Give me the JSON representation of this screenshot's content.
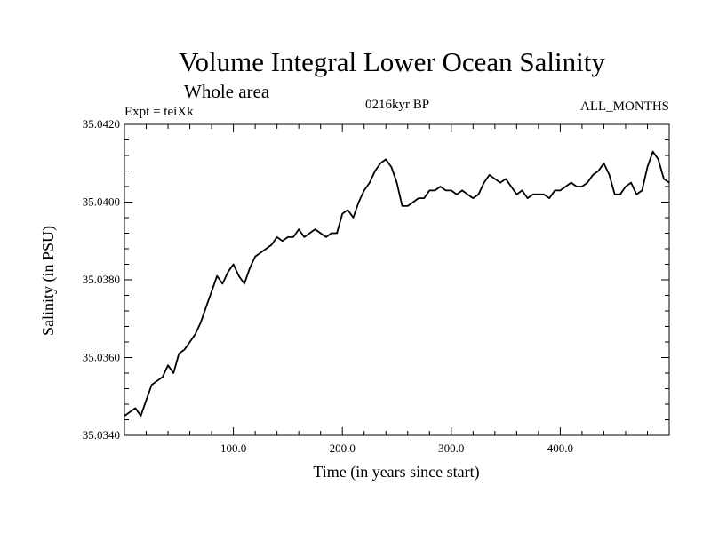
{
  "header": {
    "title": "Volume Integral Lower Ocean Salinity",
    "subtitle": "Whole area",
    "expt": "Expt = teiXk",
    "period": "0216kyr BP",
    "months": "ALL_MONTHS"
  },
  "chart_data": {
    "type": "line",
    "title": "Volume Integral Lower Ocean Salinity",
    "subtitle": "Whole area",
    "xlabel": "Time (in years since start)",
    "ylabel": "Salinity (in PSU)",
    "xlim": [
      0,
      500
    ],
    "ylim": [
      35.034,
      35.042
    ],
    "xticks": [
      100,
      200,
      300,
      400
    ],
    "xtick_labels": [
      "100.0",
      "200.0",
      "300.0",
      "400.0"
    ],
    "yticks": [
      35.034,
      35.036,
      35.038,
      35.04,
      35.042
    ],
    "ytick_labels": [
      "35.0340",
      "35.0360",
      "35.0380",
      "35.0400",
      "35.0420"
    ],
    "grid": false,
    "series": [
      {
        "color": "#000000",
        "x": [
          0,
          5,
          10,
          15,
          20,
          25,
          30,
          35,
          40,
          45,
          50,
          55,
          60,
          65,
          70,
          75,
          80,
          85,
          90,
          95,
          100,
          105,
          110,
          115,
          120,
          125,
          130,
          135,
          140,
          145,
          150,
          155,
          160,
          165,
          170,
          175,
          180,
          185,
          190,
          195,
          200,
          205,
          210,
          215,
          220,
          225,
          230,
          235,
          240,
          245,
          250,
          255,
          260,
          265,
          270,
          275,
          280,
          285,
          290,
          295,
          300,
          305,
          310,
          315,
          320,
          325,
          330,
          335,
          340,
          345,
          350,
          355,
          360,
          365,
          370,
          375,
          380,
          385,
          390,
          395,
          400,
          405,
          410,
          415,
          420,
          425,
          430,
          435,
          440,
          445,
          450,
          455,
          460,
          465,
          470,
          475,
          480,
          485,
          490,
          495,
          500
        ],
        "y": [
          35.0345,
          35.0346,
          35.0347,
          35.0345,
          35.0349,
          35.0353,
          35.0354,
          35.0355,
          35.0358,
          35.0356,
          35.0361,
          35.0362,
          35.0364,
          35.0366,
          35.0369,
          35.0373,
          35.0377,
          35.0381,
          35.0379,
          35.0382,
          35.0384,
          35.0381,
          35.0379,
          35.0383,
          35.0386,
          35.0387,
          35.0388,
          35.0389,
          35.0391,
          35.039,
          35.0391,
          35.0391,
          35.0393,
          35.0391,
          35.0392,
          35.0393,
          35.0392,
          35.0391,
          35.0392,
          35.0392,
          35.0397,
          35.0398,
          35.0396,
          35.04,
          35.0403,
          35.0405,
          35.0408,
          35.041,
          35.0411,
          35.0409,
          35.0405,
          35.0399,
          35.0399,
          35.04,
          35.0401,
          35.0401,
          35.0403,
          35.0403,
          35.0404,
          35.0403,
          35.0403,
          35.0402,
          35.0403,
          35.0402,
          35.0401,
          35.0402,
          35.0405,
          35.0407,
          35.0406,
          35.0405,
          35.0406,
          35.0404,
          35.0402,
          35.0403,
          35.0401,
          35.0402,
          35.0402,
          35.0402,
          35.0401,
          35.0403,
          35.0403,
          35.0404,
          35.0405,
          35.0404,
          35.0404,
          35.0405,
          35.0407,
          35.0408,
          35.041,
          35.0407,
          35.0402,
          35.0402,
          35.0404,
          35.0405,
          35.0402,
          35.0403,
          35.0409,
          35.0413,
          35.0411,
          35.0406,
          35.0405
        ]
      }
    ]
  }
}
